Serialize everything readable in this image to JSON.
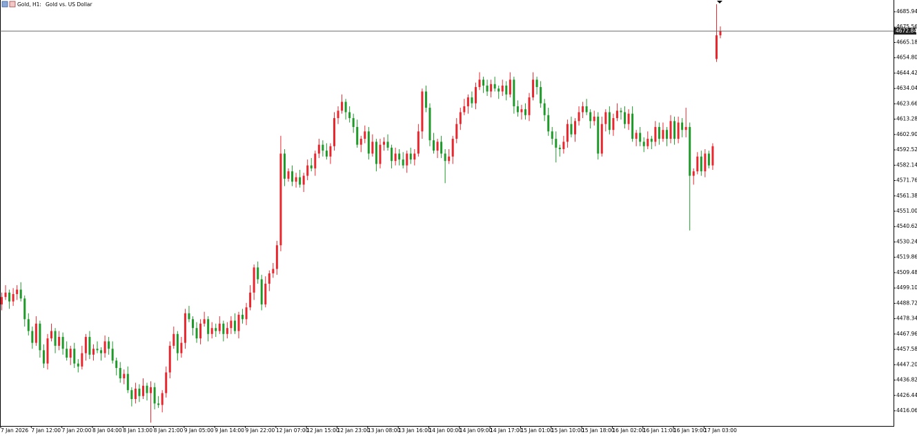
{
  "chart_data": {
    "type": "candlestick",
    "title": "Gold, H1:",
    "subtitle": "Gold vs. US Dollar",
    "current_price": 4672.84,
    "up_color": "#e8262d",
    "down_color": "#1f9a2a",
    "grid": false,
    "categories": [
      "7 Jan 2026",
      null,
      null,
      null,
      null,
      null,
      null,
      null,
      "7 Jan 12:00",
      null,
      null,
      null,
      null,
      null,
      null,
      null,
      "7 Jan 20:00",
      null,
      null,
      null,
      null,
      null,
      null,
      null,
      "8 Jan 04:00",
      null,
      null,
      null,
      null,
      null,
      null,
      null,
      "8 Jan 13:00",
      null,
      null,
      null,
      null,
      null,
      null,
      null,
      "8 Jan 21:00",
      null,
      null,
      null,
      null,
      null,
      null,
      null,
      "9 Jan 05:00",
      null,
      null,
      null,
      null,
      null,
      null,
      null,
      "9 Jan 14:00",
      null,
      null,
      null,
      null,
      null,
      null,
      null,
      "9 Jan 22:00",
      null,
      null,
      null,
      null,
      null,
      null,
      null,
      "12 Jan 07:00",
      null,
      null,
      null,
      null,
      null,
      null,
      null,
      "12 Jan 15:00",
      null,
      null,
      null,
      null,
      null,
      null,
      null,
      "12 Jan 23:00",
      null,
      null,
      null,
      null,
      null,
      null,
      null,
      "13 Jan 08:00",
      null,
      null,
      null,
      null,
      null,
      null,
      null,
      "13 Jan 16:00",
      null,
      null,
      null,
      null,
      null,
      null,
      null,
      "14 Jan 00:00",
      null,
      null,
      null,
      null,
      null,
      null,
      null,
      "14 Jan 09:00",
      null,
      null,
      null,
      null,
      null,
      null,
      null,
      "14 Jan 17:00",
      null,
      null,
      null,
      null,
      null,
      null,
      null,
      "15 Jan 01:00",
      null,
      null,
      null,
      null,
      null,
      null,
      null,
      "15 Jan 10:00",
      null,
      null,
      null,
      null,
      null,
      null,
      null,
      "15 Jan 18:00",
      null,
      null,
      null,
      null,
      null,
      null,
      null,
      "16 Jan 02:00",
      null,
      null,
      null,
      null,
      null,
      null,
      null,
      "16 Jan 11:00",
      null,
      null,
      null,
      null,
      null,
      null,
      null,
      "16 Jan 19:00",
      null,
      null,
      null,
      null,
      null,
      null,
      null,
      "17 Jan 03:00",
      null,
      null,
      null,
      null
    ],
    "open": [
      4488,
      4493,
      4496,
      4490,
      4495,
      4498,
      4492,
      4478,
      4470,
      4462,
      4475,
      4457,
      4448,
      4465,
      4470,
      4460,
      4466,
      4458,
      4452,
      4458,
      4448,
      4446,
      4455,
      4466,
      4454,
      4458,
      4457,
      4455,
      4463,
      4458,
      4450,
      4445,
      4438,
      4441,
      4430,
      4424,
      4431,
      4426,
      4433,
      4428,
      4432,
      4421,
      4420,
      4428,
      4442,
      4460,
      4468,
      4455,
      4462,
      4482,
      4478,
      4472,
      4465,
      4475,
      4478,
      4468,
      4472,
      4470,
      4475,
      4468,
      4472,
      4477,
      4470,
      4481,
      4478,
      4486,
      4496,
      4513,
      4505,
      4488,
      4502,
      4509,
      4512,
      4528,
      4590,
      4573,
      4578,
      4571,
      4574,
      4569,
      4575,
      4582,
      4580,
      4590,
      4596,
      4592,
      4588,
      4595,
      4614,
      4619,
      4625,
      4618,
      4614,
      4608,
      4596,
      4600,
      4605,
      4590,
      4598,
      4583,
      4596,
      4598,
      4594,
      4585,
      4590,
      4586,
      4582,
      4590,
      4586,
      4590,
      4605,
      4632,
      4621,
      4599,
      4592,
      4598,
      4590,
      4585,
      4588,
      4600,
      4610,
      4618,
      4622,
      4628,
      4624,
      4635,
      4640,
      4636,
      4632,
      4637,
      4634,
      4632,
      4636,
      4630,
      4640,
      4622,
      4618,
      4620,
      4616,
      4628,
      4640,
      4635,
      4624,
      4616,
      4605,
      4600,
      4594,
      4593,
      4598,
      4610,
      4603,
      4612,
      4618,
      4622,
      4618,
      4612,
      4615,
      4590,
      4610,
      4618,
      4606,
      4614,
      4619,
      4618,
      4610,
      4617,
      4600,
      4604,
      4598,
      4595,
      4600,
      4598,
      4608,
      4600,
      4606,
      4600,
      4612,
      4600,
      4611,
      4606,
      4608,
      4575,
      4578,
      4588,
      4578,
      4590,
      4582,
      4654,
      4670
    ],
    "high": [
      4496,
      4501,
      4498,
      4499,
      4501,
      4503,
      4494,
      4482,
      4473,
      4480,
      4477,
      4461,
      4468,
      4475,
      4472,
      4470,
      4469,
      4463,
      4460,
      4462,
      4451,
      4460,
      4468,
      4470,
      4461,
      4463,
      4459,
      4467,
      4466,
      4463,
      4452,
      4449,
      4444,
      4446,
      4432,
      4435,
      4434,
      4438,
      4435,
      4436,
      4435,
      4426,
      4430,
      4446,
      4463,
      4473,
      4470,
      4466,
      4485,
      4487,
      4480,
      4476,
      4478,
      4483,
      4480,
      4476,
      4475,
      4480,
      4477,
      4476,
      4480,
      4482,
      4483,
      4485,
      4489,
      4501,
      4515,
      4517,
      4508,
      4507,
      4511,
      4516,
      4531,
      4602,
      4593,
      4580,
      4582,
      4577,
      4579,
      4577,
      4586,
      4587,
      4592,
      4600,
      4599,
      4597,
      4597,
      4618,
      4622,
      4630,
      4627,
      4622,
      4617,
      4613,
      4602,
      4609,
      4608,
      4603,
      4600,
      4600,
      4601,
      4603,
      4596,
      4594,
      4593,
      4591,
      4592,
      4594,
      4593,
      4610,
      4634,
      4636,
      4624,
      4604,
      4600,
      4602,
      4593,
      4593,
      4602,
      4614,
      4621,
      4627,
      4630,
      4632,
      4638,
      4645,
      4642,
      4640,
      4640,
      4642,
      4636,
      4640,
      4639,
      4645,
      4642,
      4626,
      4623,
      4624,
      4631,
      4645,
      4642,
      4639,
      4627,
      4621,
      4608,
      4605,
      4596,
      4602,
      4613,
      4615,
      4614,
      4622,
      4625,
      4627,
      4620,
      4619,
      4618,
      4615,
      4620,
      4622,
      4617,
      4624,
      4621,
      4622,
      4620,
      4622,
      4606,
      4608,
      4601,
      4605,
      4602,
      4612,
      4611,
      4611,
      4608,
      4616,
      4615,
      4615,
      4614,
      4621,
      4611,
      4580,
      4591,
      4592,
      4593,
      4592,
      4597,
      4691,
      4676
    ],
    "low": [
      4484,
      4491,
      4485,
      4487,
      4491,
      4490,
      4473,
      4467,
      4458,
      4460,
      4452,
      4445,
      4444,
      4463,
      4455,
      4457,
      4454,
      4450,
      4447,
      4445,
      4442,
      4444,
      4450,
      4451,
      4450,
      4455,
      4450,
      4452,
      4454,
      4448,
      4440,
      4435,
      4434,
      4428,
      4419,
      4421,
      4422,
      4424,
      4423,
      4408,
      4417,
      4418,
      4415,
      4425,
      4438,
      4458,
      4450,
      4452,
      4458,
      4476,
      4467,
      4462,
      4461,
      4473,
      4463,
      4465,
      4466,
      4468,
      4463,
      4465,
      4468,
      4468,
      4465,
      4475,
      4474,
      4484,
      4491,
      4502,
      4484,
      4486,
      4497,
      4506,
      4508,
      4524,
      4568,
      4571,
      4568,
      4567,
      4567,
      4564,
      4572,
      4578,
      4575,
      4587,
      4588,
      4586,
      4583,
      4592,
      4610,
      4617,
      4613,
      4611,
      4604,
      4594,
      4591,
      4597,
      4586,
      4588,
      4578,
      4580,
      4592,
      4592,
      4580,
      4582,
      4582,
      4580,
      4577,
      4583,
      4582,
      4588,
      4600,
      4618,
      4595,
      4590,
      4587,
      4587,
      4570,
      4583,
      4583,
      4597,
      4606,
      4616,
      4617,
      4621,
      4620,
      4633,
      4631,
      4629,
      4628,
      4632,
      4627,
      4629,
      4626,
      4628,
      4617,
      4615,
      4613,
      4613,
      4612,
      4626,
      4630,
      4621,
      4612,
      4602,
      4596,
      4584,
      4588,
      4590,
      4594,
      4601,
      4598,
      4609,
      4614,
      4616,
      4607,
      4609,
      4586,
      4588,
      4605,
      4603,
      4602,
      4612,
      4613,
      4607,
      4606,
      4598,
      4595,
      4595,
      4591,
      4593,
      4593,
      4595,
      4596,
      4598,
      4595,
      4597,
      4596,
      4597,
      4601,
      4601,
      4538,
      4569,
      4576,
      4575,
      4574,
      4580,
      4579,
      4652,
      4668
    ],
    "close": [
      4493,
      4496,
      4490,
      4495,
      4498,
      4492,
      4478,
      4470,
      4462,
      4475,
      4457,
      4448,
      4465,
      4470,
      4460,
      4466,
      4458,
      4452,
      4458,
      4448,
      4446,
      4455,
      4466,
      4454,
      4458,
      4457,
      4455,
      4463,
      4458,
      4450,
      4445,
      4438,
      4441,
      4430,
      4424,
      4431,
      4426,
      4433,
      4428,
      4432,
      4421,
      4420,
      4428,
      4442,
      4460,
      4468,
      4455,
      4462,
      4482,
      4478,
      4472,
      4465,
      4475,
      4478,
      4468,
      4472,
      4470,
      4475,
      4468,
      4472,
      4477,
      4470,
      4481,
      4478,
      4486,
      4496,
      4513,
      4505,
      4488,
      4502,
      4509,
      4512,
      4528,
      4590,
      4573,
      4578,
      4571,
      4574,
      4569,
      4575,
      4582,
      4580,
      4590,
      4596,
      4592,
      4588,
      4595,
      4614,
      4619,
      4625,
      4618,
      4614,
      4608,
      4596,
      4600,
      4605,
      4590,
      4598,
      4583,
      4596,
      4598,
      4594,
      4585,
      4590,
      4586,
      4582,
      4590,
      4586,
      4590,
      4605,
      4632,
      4621,
      4599,
      4592,
      4598,
      4590,
      4585,
      4588,
      4600,
      4610,
      4618,
      4622,
      4628,
      4624,
      4635,
      4640,
      4636,
      4632,
      4637,
      4634,
      4632,
      4636,
      4630,
      4640,
      4622,
      4618,
      4620,
      4616,
      4628,
      4640,
      4635,
      4624,
      4616,
      4605,
      4600,
      4594,
      4593,
      4598,
      4610,
      4603,
      4612,
      4618,
      4622,
      4618,
      4612,
      4615,
      4590,
      4610,
      4618,
      4606,
      4614,
      4619,
      4618,
      4610,
      4617,
      4600,
      4604,
      4598,
      4595,
      4600,
      4598,
      4608,
      4600,
      4606,
      4600,
      4612,
      4600,
      4611,
      4606,
      4608,
      4575,
      4578,
      4588,
      4578,
      4590,
      4582,
      4595,
      4670,
      4672.84
    ],
    "ylim": [
      4405.79,
      4693.88
    ],
    "yticks": [
      4685.94,
      4675.56,
      4665.18,
      {
        "value": 4654.8,
        "label": "4654.80"
      },
      4644.42,
      4634.04,
      4623.66,
      4613.28,
      {
        "value": 4602.9,
        "label": "4602.90"
      },
      4592.52,
      4582.14,
      4571.76,
      4561.38,
      {
        "value": 4551,
        "label": "4551.00"
      },
      4540.62,
      4530.24,
      4519.86,
      4509.48,
      {
        "value": 4499.1,
        "label": "4499.10"
      },
      4488.72,
      4478.34,
      4467.96,
      4457.58,
      {
        "value": 4447.2,
        "label": "4447.20"
      },
      4436.82,
      4426.44,
      4416.06
    ]
  }
}
